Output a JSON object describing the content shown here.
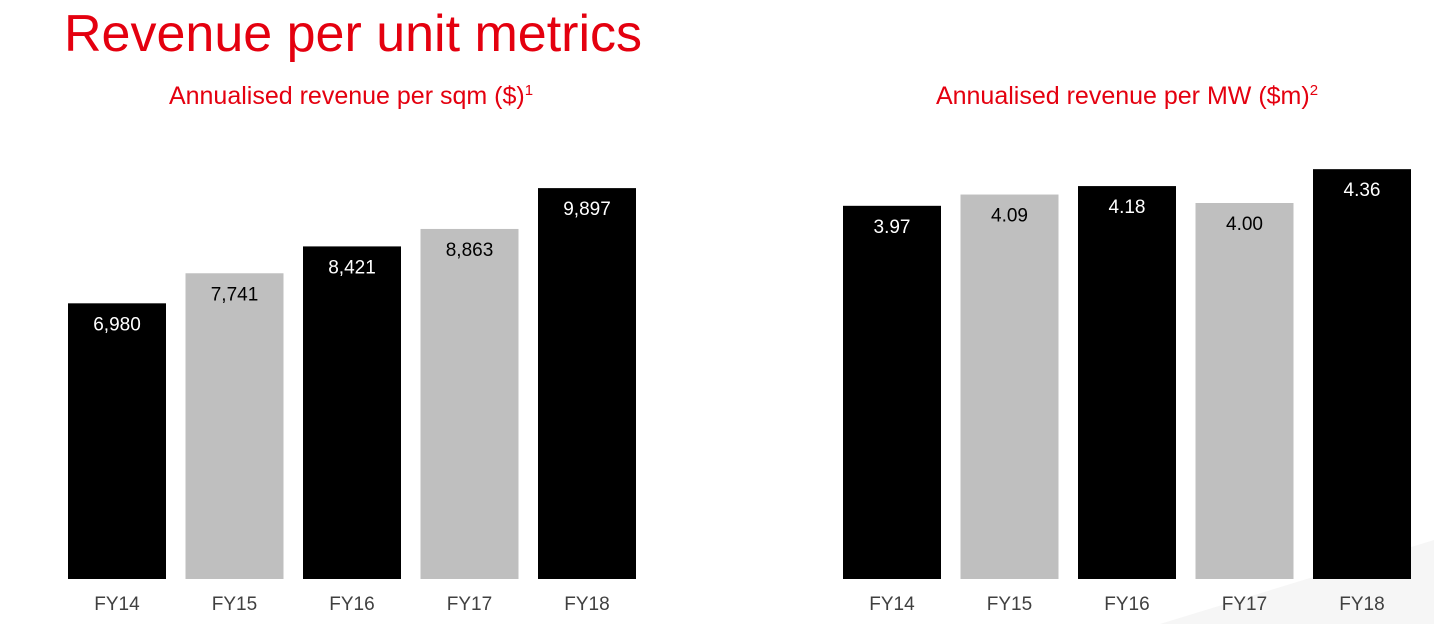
{
  "page_title": "Revenue per unit metrics",
  "colors": {
    "accent": "#e4000f",
    "bar_dark": "#000000",
    "bar_light": "#bfbfbf"
  },
  "chart_data": [
    {
      "type": "bar",
      "title": "Annualised revenue per sqm ($)",
      "title_footnote": "1",
      "categories": [
        "FY14",
        "FY15",
        "FY16",
        "FY17",
        "FY18"
      ],
      "values": [
        6980,
        7741,
        8421,
        8863,
        9897
      ],
      "value_labels": [
        "6,980",
        "7,741",
        "8,421",
        "8,863",
        "9,897"
      ],
      "bar_colors": [
        "#000000",
        "#bfbfbf",
        "#000000",
        "#bfbfbf",
        "#000000"
      ],
      "label_colors": [
        "#ffffff",
        "#000000",
        "#ffffff",
        "#000000",
        "#ffffff"
      ],
      "ylim": [
        0,
        11900
      ],
      "grid": false,
      "legend": "none"
    },
    {
      "type": "bar",
      "title": "Annualised revenue per MW ($m)",
      "title_footnote": "2",
      "categories": [
        "FY14",
        "FY15",
        "FY16",
        "FY17",
        "FY18"
      ],
      "values": [
        3.97,
        4.09,
        4.18,
        4.0,
        4.36
      ],
      "value_labels": [
        "3.97",
        "4.09",
        "4.18",
        "4.00",
        "4.36"
      ],
      "bar_colors": [
        "#000000",
        "#bfbfbf",
        "#000000",
        "#bfbfbf",
        "#000000"
      ],
      "label_colors": [
        "#ffffff",
        "#000000",
        "#ffffff",
        "#000000",
        "#ffffff"
      ],
      "ylim": [
        0,
        5.0
      ],
      "grid": false,
      "legend": "none"
    }
  ]
}
